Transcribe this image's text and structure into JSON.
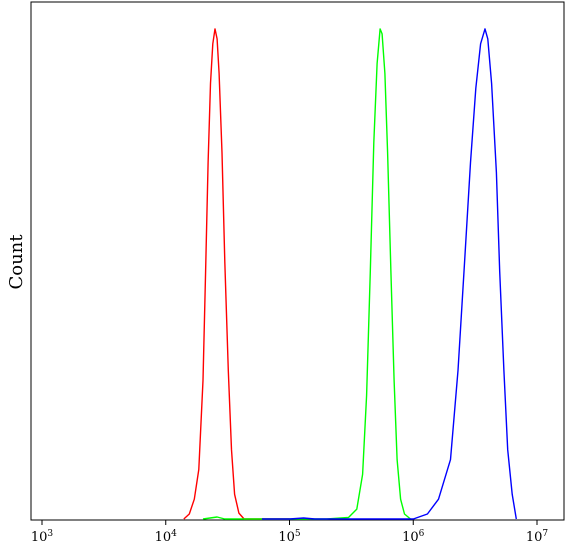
{
  "chart_data": {
    "type": "line",
    "title": "",
    "xlabel": "",
    "ylabel": "Count",
    "x_scale": "log",
    "xlim": [
      1000,
      10000000
    ],
    "ylim": [
      0,
      1
    ],
    "grid": false,
    "legend": "none",
    "x_ticks": [
      {
        "value": 1000,
        "base": "10",
        "exp": "3"
      },
      {
        "value": 10000,
        "base": "10",
        "exp": "4"
      },
      {
        "value": 100000,
        "base": "10",
        "exp": "5"
      },
      {
        "value": 1000000,
        "base": "10",
        "exp": "6"
      },
      {
        "value": 10000000,
        "base": "10",
        "exp": "7"
      }
    ],
    "series": [
      {
        "color": "#ff0000",
        "peak": 25000,
        "points": [
          [
            14000,
            0.0
          ],
          [
            15500,
            0.01
          ],
          [
            17000,
            0.04
          ],
          [
            18500,
            0.1
          ],
          [
            20000,
            0.28
          ],
          [
            21000,
            0.5
          ],
          [
            22000,
            0.72
          ],
          [
            23000,
            0.88
          ],
          [
            24000,
            0.96
          ],
          [
            25000,
            0.99
          ],
          [
            26000,
            0.97
          ],
          [
            27000,
            0.9
          ],
          [
            28500,
            0.74
          ],
          [
            30000,
            0.52
          ],
          [
            32000,
            0.3
          ],
          [
            34000,
            0.14
          ],
          [
            36000,
            0.05
          ],
          [
            39000,
            0.012
          ],
          [
            43000,
            0.0
          ],
          [
            60000,
            0.0
          ],
          [
            80000,
            0.0
          ],
          [
            100000,
            0.0
          ]
        ]
      },
      {
        "color": "#00ff00",
        "peak": 550000,
        "points": [
          [
            20000,
            0.0
          ],
          [
            26000,
            0.004
          ],
          [
            30000,
            0.0
          ],
          [
            60000,
            0.0
          ],
          [
            200000,
            0.0
          ],
          [
            300000,
            0.003
          ],
          [
            350000,
            0.02
          ],
          [
            390000,
            0.09
          ],
          [
            420000,
            0.25
          ],
          [
            450000,
            0.5
          ],
          [
            480000,
            0.76
          ],
          [
            510000,
            0.92
          ],
          [
            540000,
            0.99
          ],
          [
            560000,
            0.98
          ],
          [
            590000,
            0.9
          ],
          [
            620000,
            0.74
          ],
          [
            660000,
            0.5
          ],
          [
            700000,
            0.28
          ],
          [
            740000,
            0.12
          ],
          [
            790000,
            0.04
          ],
          [
            850000,
            0.01
          ],
          [
            950000,
            0.0
          ]
        ]
      },
      {
        "color": "#0000ff",
        "peak": 3800000,
        "points": [
          [
            60000,
            0.0
          ],
          [
            100000,
            0.0
          ],
          [
            130000,
            0.002
          ],
          [
            160000,
            0.0
          ],
          [
            1000000,
            0.0
          ],
          [
            1300000,
            0.01
          ],
          [
            1600000,
            0.04
          ],
          [
            2000000,
            0.12
          ],
          [
            2300000,
            0.3
          ],
          [
            2600000,
            0.52
          ],
          [
            2900000,
            0.72
          ],
          [
            3200000,
            0.87
          ],
          [
            3500000,
            0.96
          ],
          [
            3800000,
            0.99
          ],
          [
            4000000,
            0.97
          ],
          [
            4300000,
            0.88
          ],
          [
            4700000,
            0.7
          ],
          [
            5000000,
            0.5
          ],
          [
            5400000,
            0.3
          ],
          [
            5800000,
            0.14
          ],
          [
            6300000,
            0.05
          ],
          [
            6800000,
            0.0
          ]
        ]
      }
    ]
  }
}
